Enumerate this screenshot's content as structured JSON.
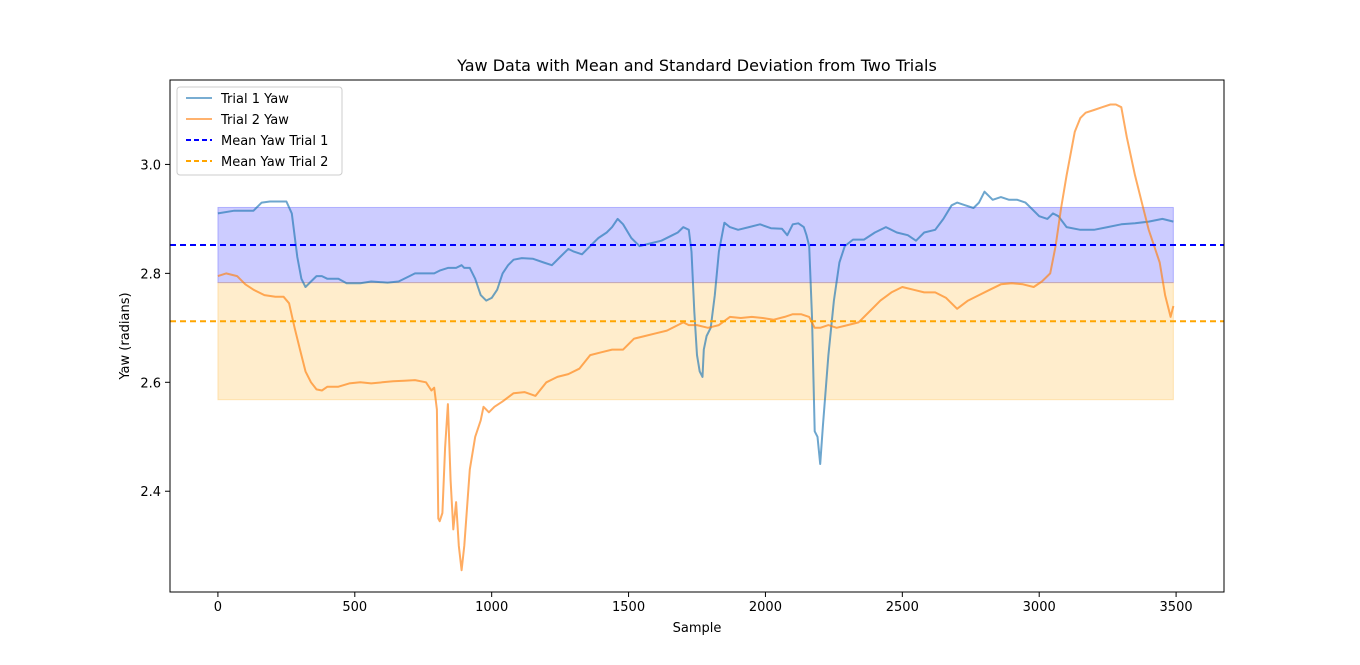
{
  "chart_data": {
    "type": "line",
    "title": "Yaw Data with Mean and Standard Deviation from Two Trials",
    "xlabel": "Sample",
    "ylabel": "Yaw (radians)",
    "xlim": [
      -175,
      3675
    ],
    "ylim": [
      2.215,
      3.155
    ],
    "xticks": [
      0,
      500,
      1000,
      1500,
      2000,
      2500,
      3000,
      3500
    ],
    "xtick_labels": [
      "0",
      "500",
      "1000",
      "1500",
      "2000",
      "2500",
      "3000",
      "3500"
    ],
    "yticks": [
      2.4,
      2.6,
      2.8,
      3.0
    ],
    "ytick_labels": [
      "2.4",
      "2.6",
      "2.8",
      "3.0"
    ],
    "grid": false,
    "legend_position": "upper-left",
    "series": [
      {
        "name": "Trial 1 Yaw",
        "color": "#1f77b4",
        "x": [
          0,
          60,
          130,
          160,
          190,
          250,
          270,
          290,
          305,
          320,
          340,
          360,
          380,
          400,
          440,
          470,
          520,
          560,
          620,
          660,
          700,
          720,
          760,
          790,
          810,
          840,
          870,
          890,
          900,
          920,
          940,
          960,
          980,
          1000,
          1020,
          1040,
          1060,
          1080,
          1110,
          1150,
          1190,
          1220,
          1250,
          1280,
          1300,
          1330,
          1360,
          1390,
          1420,
          1440,
          1460,
          1480,
          1510,
          1540,
          1580,
          1620,
          1660,
          1680,
          1700,
          1720,
          1730,
          1740,
          1750,
          1760,
          1770,
          1775,
          1785,
          1800,
          1815,
          1830,
          1850,
          1870,
          1900,
          1940,
          1980,
          2020,
          2060,
          2080,
          2100,
          2120,
          2140,
          2150,
          2160,
          2170,
          2180,
          2190,
          2200,
          2210,
          2230,
          2250,
          2270,
          2290,
          2320,
          2360,
          2400,
          2440,
          2480,
          2520,
          2550,
          2580,
          2620,
          2650,
          2680,
          2700,
          2730,
          2760,
          2780,
          2800,
          2830,
          2860,
          2890,
          2920,
          2950,
          2970,
          3000,
          3030,
          3050,
          3070,
          3100,
          3150,
          3200,
          3250,
          3300,
          3350,
          3400,
          3450,
          3490
        ],
        "values": [
          2.91,
          2.915,
          2.915,
          2.93,
          2.932,
          2.932,
          2.91,
          2.83,
          2.79,
          2.775,
          2.785,
          2.795,
          2.795,
          2.79,
          2.79,
          2.782,
          2.782,
          2.785,
          2.783,
          2.785,
          2.795,
          2.8,
          2.8,
          2.8,
          2.805,
          2.81,
          2.81,
          2.815,
          2.81,
          2.81,
          2.79,
          2.76,
          2.75,
          2.755,
          2.77,
          2.8,
          2.815,
          2.825,
          2.828,
          2.827,
          2.82,
          2.815,
          2.83,
          2.845,
          2.84,
          2.835,
          2.85,
          2.865,
          2.875,
          2.885,
          2.9,
          2.89,
          2.865,
          2.85,
          2.855,
          2.86,
          2.87,
          2.875,
          2.885,
          2.88,
          2.84,
          2.73,
          2.65,
          2.62,
          2.61,
          2.66,
          2.685,
          2.7,
          2.76,
          2.84,
          2.893,
          2.885,
          2.88,
          2.885,
          2.89,
          2.883,
          2.882,
          2.87,
          2.89,
          2.892,
          2.885,
          2.87,
          2.85,
          2.72,
          2.51,
          2.5,
          2.45,
          2.52,
          2.65,
          2.75,
          2.82,
          2.85,
          2.862,
          2.862,
          2.875,
          2.885,
          2.875,
          2.87,
          2.86,
          2.875,
          2.88,
          2.9,
          2.925,
          2.93,
          2.925,
          2.92,
          2.93,
          2.95,
          2.935,
          2.94,
          2.935,
          2.935,
          2.93,
          2.92,
          2.905,
          2.9,
          2.91,
          2.905,
          2.885,
          2.88,
          2.88,
          2.885,
          2.89,
          2.892,
          2.895,
          2.9,
          2.895
        ]
      },
      {
        "name": "Trial 2 Yaw",
        "color": "#ff7f0e",
        "x": [
          0,
          30,
          70,
          100,
          130,
          170,
          210,
          240,
          260,
          280,
          300,
          320,
          340,
          360,
          380,
          400,
          440,
          480,
          520,
          560,
          600,
          640,
          680,
          720,
          760,
          780,
          790,
          800,
          805,
          810,
          820,
          830,
          840,
          850,
          860,
          870,
          880,
          890,
          900,
          920,
          940,
          960,
          970,
          990,
          1010,
          1040,
          1080,
          1120,
          1160,
          1200,
          1240,
          1280,
          1320,
          1360,
          1400,
          1440,
          1480,
          1520,
          1560,
          1600,
          1640,
          1680,
          1700,
          1720,
          1750,
          1790,
          1830,
          1870,
          1910,
          1950,
          1990,
          2030,
          2070,
          2100,
          2130,
          2160,
          2180,
          2200,
          2230,
          2260,
          2300,
          2340,
          2380,
          2420,
          2460,
          2500,
          2540,
          2580,
          2620,
          2660,
          2700,
          2740,
          2780,
          2820,
          2860,
          2900,
          2940,
          2980,
          3010,
          3040,
          3060,
          3080,
          3100,
          3130,
          3150,
          3170,
          3200,
          3230,
          3260,
          3280,
          3300,
          3320,
          3350,
          3380,
          3400,
          3420,
          3440,
          3460,
          3480,
          3490
        ],
        "values": [
          2.795,
          2.8,
          2.795,
          2.78,
          2.77,
          2.76,
          2.757,
          2.757,
          2.745,
          2.7,
          2.66,
          2.62,
          2.6,
          2.587,
          2.585,
          2.592,
          2.592,
          2.598,
          2.6,
          2.598,
          2.6,
          2.602,
          2.603,
          2.604,
          2.6,
          2.585,
          2.59,
          2.55,
          2.35,
          2.345,
          2.36,
          2.48,
          2.56,
          2.42,
          2.33,
          2.38,
          2.3,
          2.255,
          2.3,
          2.44,
          2.5,
          2.53,
          2.555,
          2.545,
          2.555,
          2.565,
          2.58,
          2.582,
          2.575,
          2.6,
          2.61,
          2.615,
          2.625,
          2.65,
          2.655,
          2.66,
          2.66,
          2.68,
          2.685,
          2.69,
          2.695,
          2.705,
          2.71,
          2.705,
          2.705,
          2.7,
          2.705,
          2.72,
          2.718,
          2.72,
          2.718,
          2.715,
          2.72,
          2.725,
          2.725,
          2.72,
          2.7,
          2.7,
          2.705,
          2.7,
          2.705,
          2.71,
          2.73,
          2.75,
          2.765,
          2.775,
          2.77,
          2.765,
          2.765,
          2.755,
          2.735,
          2.75,
          2.76,
          2.77,
          2.78,
          2.782,
          2.78,
          2.775,
          2.785,
          2.8,
          2.85,
          2.92,
          2.98,
          3.06,
          3.085,
          3.095,
          3.1,
          3.105,
          3.11,
          3.11,
          3.105,
          3.05,
          2.98,
          2.92,
          2.88,
          2.85,
          2.82,
          2.76,
          2.72,
          2.74
        ]
      },
      {
        "name": "Mean Yaw Trial 1",
        "color": "#0000ff",
        "style": "dashed",
        "value": 2.852
      },
      {
        "name": "Mean Yaw Trial 2",
        "color": "#ffa500",
        "style": "dashed",
        "value": 2.712
      }
    ],
    "std_bands": [
      {
        "color": "#0000ff",
        "opacity": 0.2,
        "x_range": [
          0,
          3490
        ],
        "y_range": [
          2.783,
          2.921
        ]
      },
      {
        "color": "#ffa500",
        "opacity": 0.2,
        "x_range": [
          0,
          3490
        ],
        "y_range": [
          2.568,
          2.783
        ]
      }
    ],
    "legend": [
      "Trial 1 Yaw",
      "Trial 2 Yaw",
      "Mean Yaw Trial 1",
      "Mean Yaw Trial 2"
    ]
  }
}
